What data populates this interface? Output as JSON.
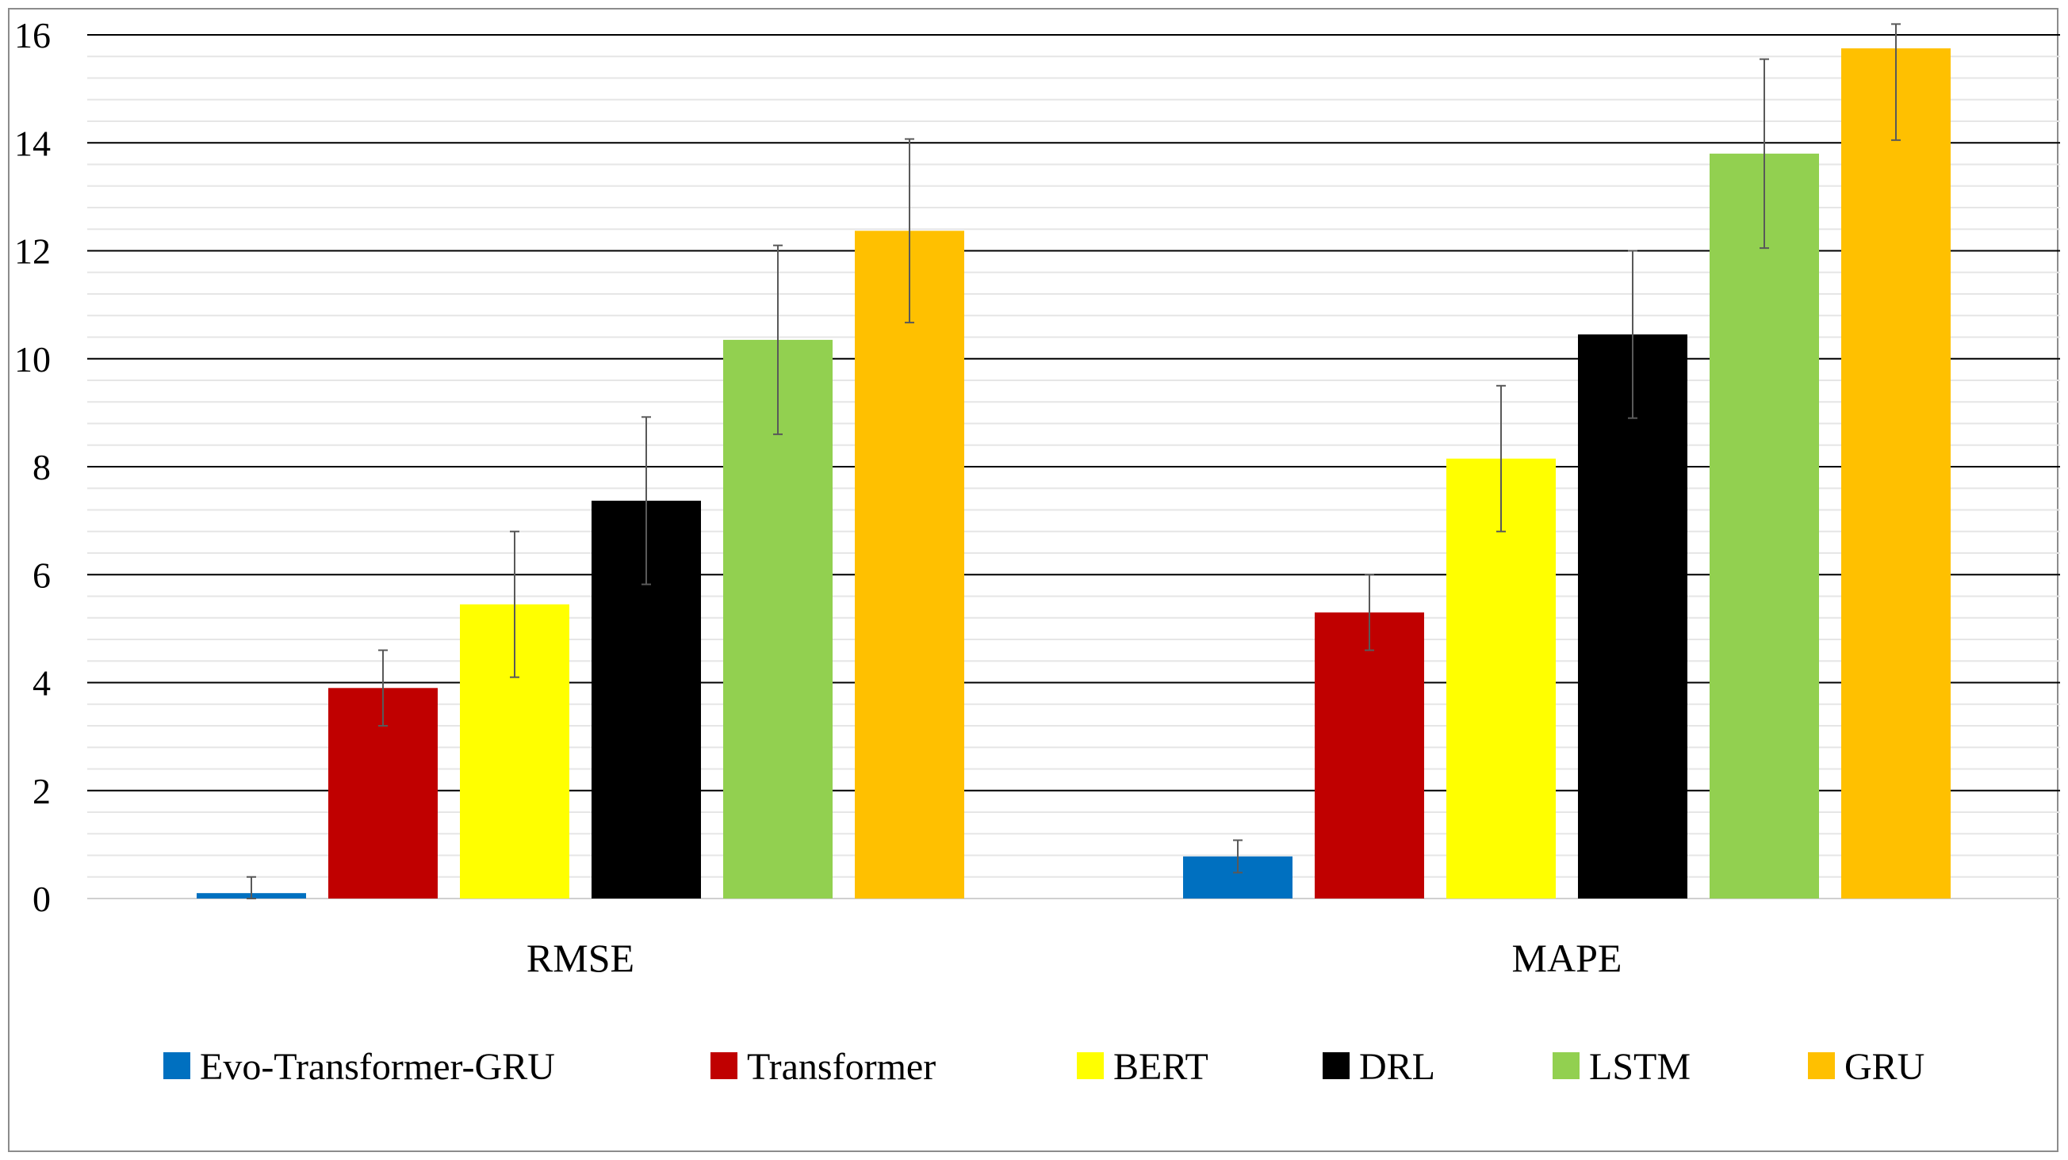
{
  "chart_data": {
    "type": "bar",
    "title": "",
    "xlabel": "",
    "ylabel": "",
    "categories": [
      "RMSE",
      "MAPE"
    ],
    "ylim": [
      0,
      16
    ],
    "ytick_step": 2,
    "minor_grid_step": 0.4,
    "grid": true,
    "legend_position": "bottom",
    "series": [
      {
        "name": "Evo-Transformer-GRU",
        "color": "#0070C0",
        "values": [
          0.1,
          0.78
        ],
        "errors": [
          0.3,
          0.3
        ]
      },
      {
        "name": "Transformer",
        "color": "#C00000",
        "values": [
          3.9,
          5.3
        ],
        "errors": [
          0.7,
          0.7
        ]
      },
      {
        "name": "BERT",
        "color": "#FFFF00",
        "values": [
          5.45,
          8.15
        ],
        "errors": [
          1.35,
          1.35
        ]
      },
      {
        "name": "DRL",
        "color": "#000000",
        "values": [
          7.37,
          10.45
        ],
        "errors": [
          1.55,
          1.55
        ]
      },
      {
        "name": "LSTM",
        "color": "#92D050",
        "values": [
          10.35,
          13.8
        ],
        "errors": [
          1.75,
          1.75
        ]
      },
      {
        "name": "GRU",
        "color": "#FFC000",
        "values": [
          12.37,
          15.75
        ],
        "errors": [
          1.7,
          1.7
        ]
      }
    ]
  }
}
